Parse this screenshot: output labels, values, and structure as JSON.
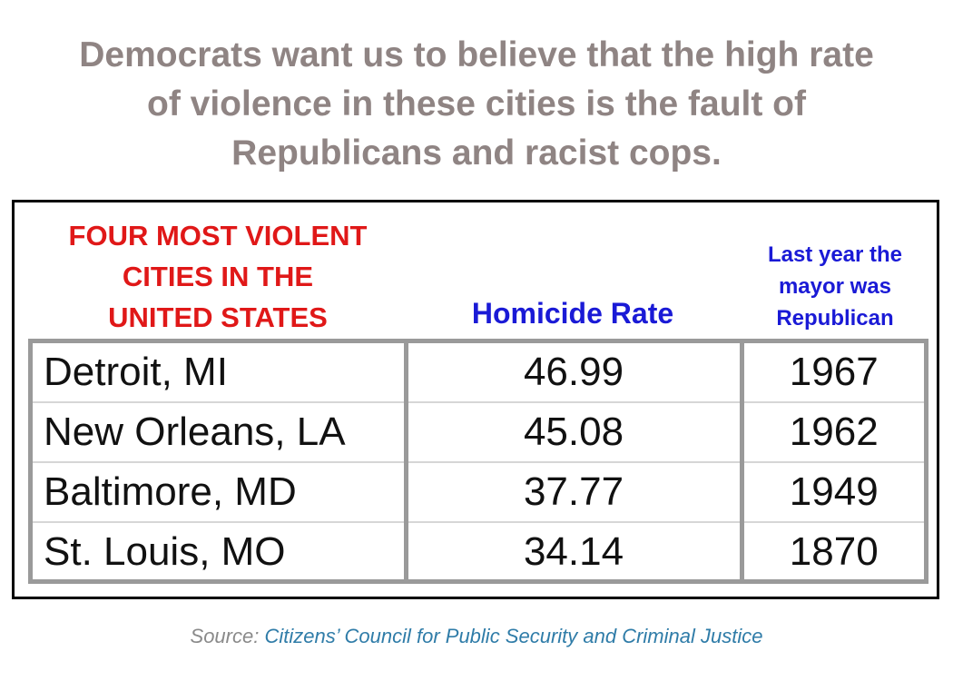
{
  "headline": {
    "line1": "Democrats want us to believe that the high rate",
    "line2": "of violence in these cities is the fault of",
    "line3": "Republicans and racist cops."
  },
  "table_title": {
    "line1": "FOUR MOST VIOLENT",
    "line2": "CITIES IN THE",
    "line3": "UNITED STATES"
  },
  "columns": {
    "rate": "Homicide Rate",
    "year_line1": "Last year the",
    "year_line2": "mayor was",
    "year_line3": "Republican"
  },
  "rows": [
    {
      "city": "Detroit, MI",
      "rate": "46.99",
      "year": "1967"
    },
    {
      "city": "New Orleans, LA",
      "rate": "45.08",
      "year": "1962"
    },
    {
      "city": "Baltimore, MD",
      "rate": "37.77",
      "year": "1949"
    },
    {
      "city": "St. Louis, MO",
      "rate": "34.14",
      "year": "1870"
    }
  ],
  "source": {
    "label": "Source:",
    "org": "Citizens’ Council for Public Security and Criminal Justice"
  },
  "colors": {
    "headline": "#8f8483",
    "title_red": "#e01818",
    "header_blue": "#1a1ad6",
    "source_link": "#2f7ca8"
  }
}
